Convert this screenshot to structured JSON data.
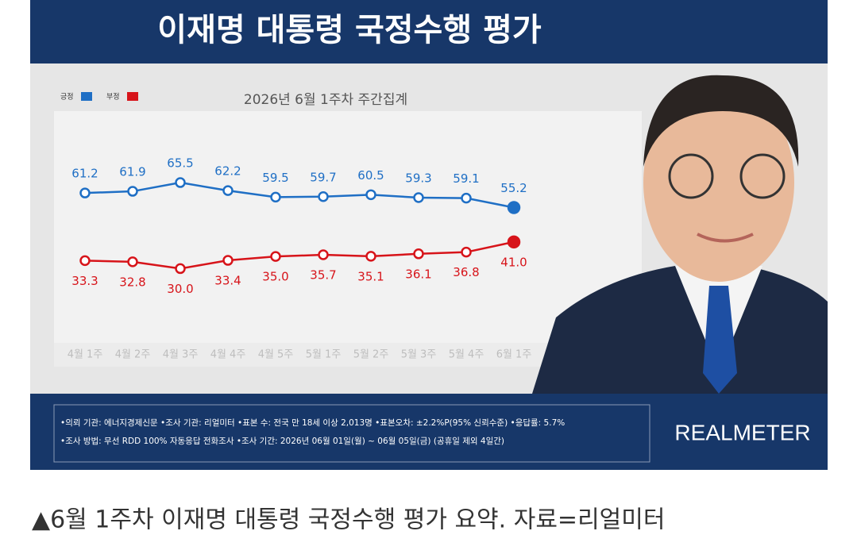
{
  "chart_data": {
    "type": "line",
    "title": "이재명 대통령 국정수행 평가",
    "subtitle": "2026년 6월 1주차 주간집계",
    "categories": [
      "4월 1주",
      "4월 2주",
      "4월 3주",
      "4월 4주",
      "4월 5주",
      "5월 1주",
      "5월 2주",
      "5월 3주",
      "5월 4주",
      "6월 1주"
    ],
    "series": [
      {
        "name": "긍정",
        "color": "#1f6fc5",
        "values": [
          61.2,
          61.9,
          65.5,
          62.2,
          59.5,
          59.7,
          60.5,
          59.3,
          59.1,
          55.2
        ],
        "value_labels": [
          "61.2",
          "61.9",
          "65.5",
          "62.2",
          "59.5",
          "59.7",
          "60.5",
          "59.3",
          "59.1",
          "55.2"
        ]
      },
      {
        "name": "부정",
        "color": "#d7141a",
        "values": [
          33.3,
          32.8,
          30,
          33.4,
          35,
          35.7,
          35.1,
          36.1,
          36.8,
          41
        ],
        "value_labels": [
          "33.3",
          "32.8",
          "30.0",
          "33.4",
          "35.0",
          "35.7",
          "35.1",
          "36.1",
          "36.8",
          "41.0"
        ]
      }
    ],
    "ylim": [
      0,
      95
    ],
    "legend": "top-left"
  },
  "footer": {
    "notes": [
      "•의뢰 기관: 에너지경제신문 •조사 기관: 리얼미터 •표본 수: 전국 만 18세 이상 2,013명 •표본오차: ±2.2%P(95% 신뢰수준) •응답률: 5.7%",
      "•조사 방법: 무선 RDD 100% 자동응답 전화조사 •조사 기간: 2026년 06월 01일(월) ~ 06월 05일(금) (공휴일 제외 4일간)"
    ],
    "brand": "REALMETER"
  },
  "caption": "▲6월 1주차 이재명 대통령 국정수행 평가 요약. 자료=리얼미터"
}
